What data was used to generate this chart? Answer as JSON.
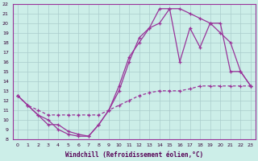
{
  "xlabel": "Windchill (Refroidissement éolien,°C)",
  "xlim": [
    -0.5,
    23.5
  ],
  "ylim": [
    8,
    22
  ],
  "xtick_vals": [
    0,
    1,
    2,
    3,
    4,
    5,
    6,
    7,
    8,
    9,
    10,
    11,
    12,
    13,
    14,
    15,
    16,
    17,
    18,
    19,
    20,
    21,
    22,
    23
  ],
  "ytick_vals": [
    8,
    9,
    10,
    11,
    12,
    13,
    14,
    15,
    16,
    17,
    18,
    19,
    20,
    21,
    22
  ],
  "background_color": "#cceee8",
  "grid_color": "#aacccc",
  "line_color": "#993399",
  "line1_x": [
    0,
    1,
    2,
    3,
    4,
    5,
    6,
    7,
    8,
    9,
    10,
    11,
    12,
    13,
    14,
    15,
    16,
    17,
    18,
    19,
    20,
    21,
    22,
    23
  ],
  "line1_y": [
    12.5,
    11.5,
    10.5,
    9.5,
    9.5,
    8.8,
    8.5,
    8.3,
    9.5,
    11.0,
    13.5,
    16.5,
    18.0,
    19.5,
    21.5,
    21.5,
    21.5,
    21.0,
    20.5,
    20.0,
    19.0,
    18.0,
    15.0,
    13.5
  ],
  "line1_style": "solid",
  "line2_x": [
    0,
    1,
    2,
    3,
    4,
    5,
    6,
    7,
    8,
    9,
    10,
    11,
    12,
    13,
    14,
    15,
    16,
    17,
    18,
    19,
    20,
    21,
    22,
    23
  ],
  "line2_y": [
    12.5,
    11.5,
    10.5,
    10.0,
    9.0,
    8.5,
    8.3,
    8.3,
    9.5,
    11.0,
    13.0,
    16.0,
    18.5,
    19.5,
    20.0,
    21.5,
    16.0,
    19.5,
    17.5,
    20.0,
    20.0,
    15.0,
    15.0,
    13.5
  ],
  "line2_style": "solid",
  "line3_x": [
    0,
    1,
    2,
    3,
    4,
    5,
    6,
    7,
    8,
    9,
    10,
    11,
    12,
    13,
    14,
    15,
    16,
    17,
    18,
    19,
    20,
    21,
    22,
    23
  ],
  "line3_y": [
    12.5,
    11.5,
    11.0,
    10.5,
    10.5,
    10.5,
    10.5,
    10.5,
    10.5,
    11.0,
    11.5,
    12.0,
    12.5,
    12.8,
    13.0,
    13.0,
    13.0,
    13.2,
    13.5,
    13.5,
    13.5,
    13.5,
    13.5,
    13.5
  ],
  "line3_style": "dashed"
}
